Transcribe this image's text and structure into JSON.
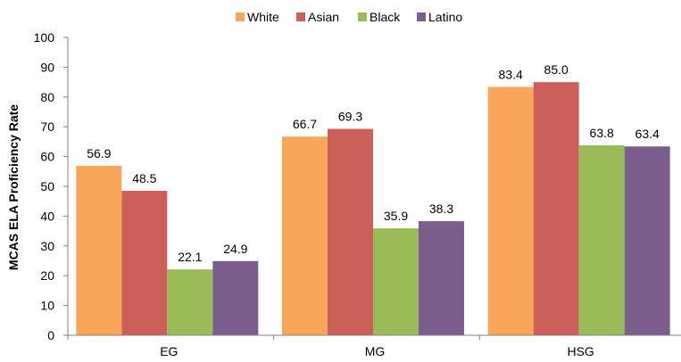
{
  "chart_data": {
    "type": "bar",
    "categories": [
      "EG",
      "MG",
      "HSG"
    ],
    "series": [
      {
        "name": "White",
        "color": "#F9A65A",
        "values": [
          56.9,
          66.7,
          83.4
        ]
      },
      {
        "name": "Asian",
        "color": "#CD5F5B",
        "values": [
          48.5,
          69.3,
          85.0
        ]
      },
      {
        "name": "Black",
        "color": "#9BBB59",
        "values": [
          22.1,
          35.9,
          63.8
        ]
      },
      {
        "name": "Latino",
        "color": "#7B5E8E",
        "values": [
          24.9,
          38.3,
          63.4
        ]
      }
    ],
    "ylabel": "MCAS ELA Proficiency Rate",
    "xlabel": "",
    "ylim": [
      0,
      100
    ],
    "yticks": [
      "0",
      "10",
      "20",
      "30",
      "40",
      "50",
      "60",
      "70",
      "80",
      "90",
      "100"
    ],
    "data_labels": [
      [
        "56.9",
        "66.7",
        "83.4"
      ],
      [
        "48.5",
        "69.3",
        "85.0"
      ],
      [
        "22.1",
        "35.9",
        "63.8"
      ],
      [
        "24.9",
        "38.3",
        "63.4"
      ]
    ],
    "legend": "top",
    "grid": false
  }
}
